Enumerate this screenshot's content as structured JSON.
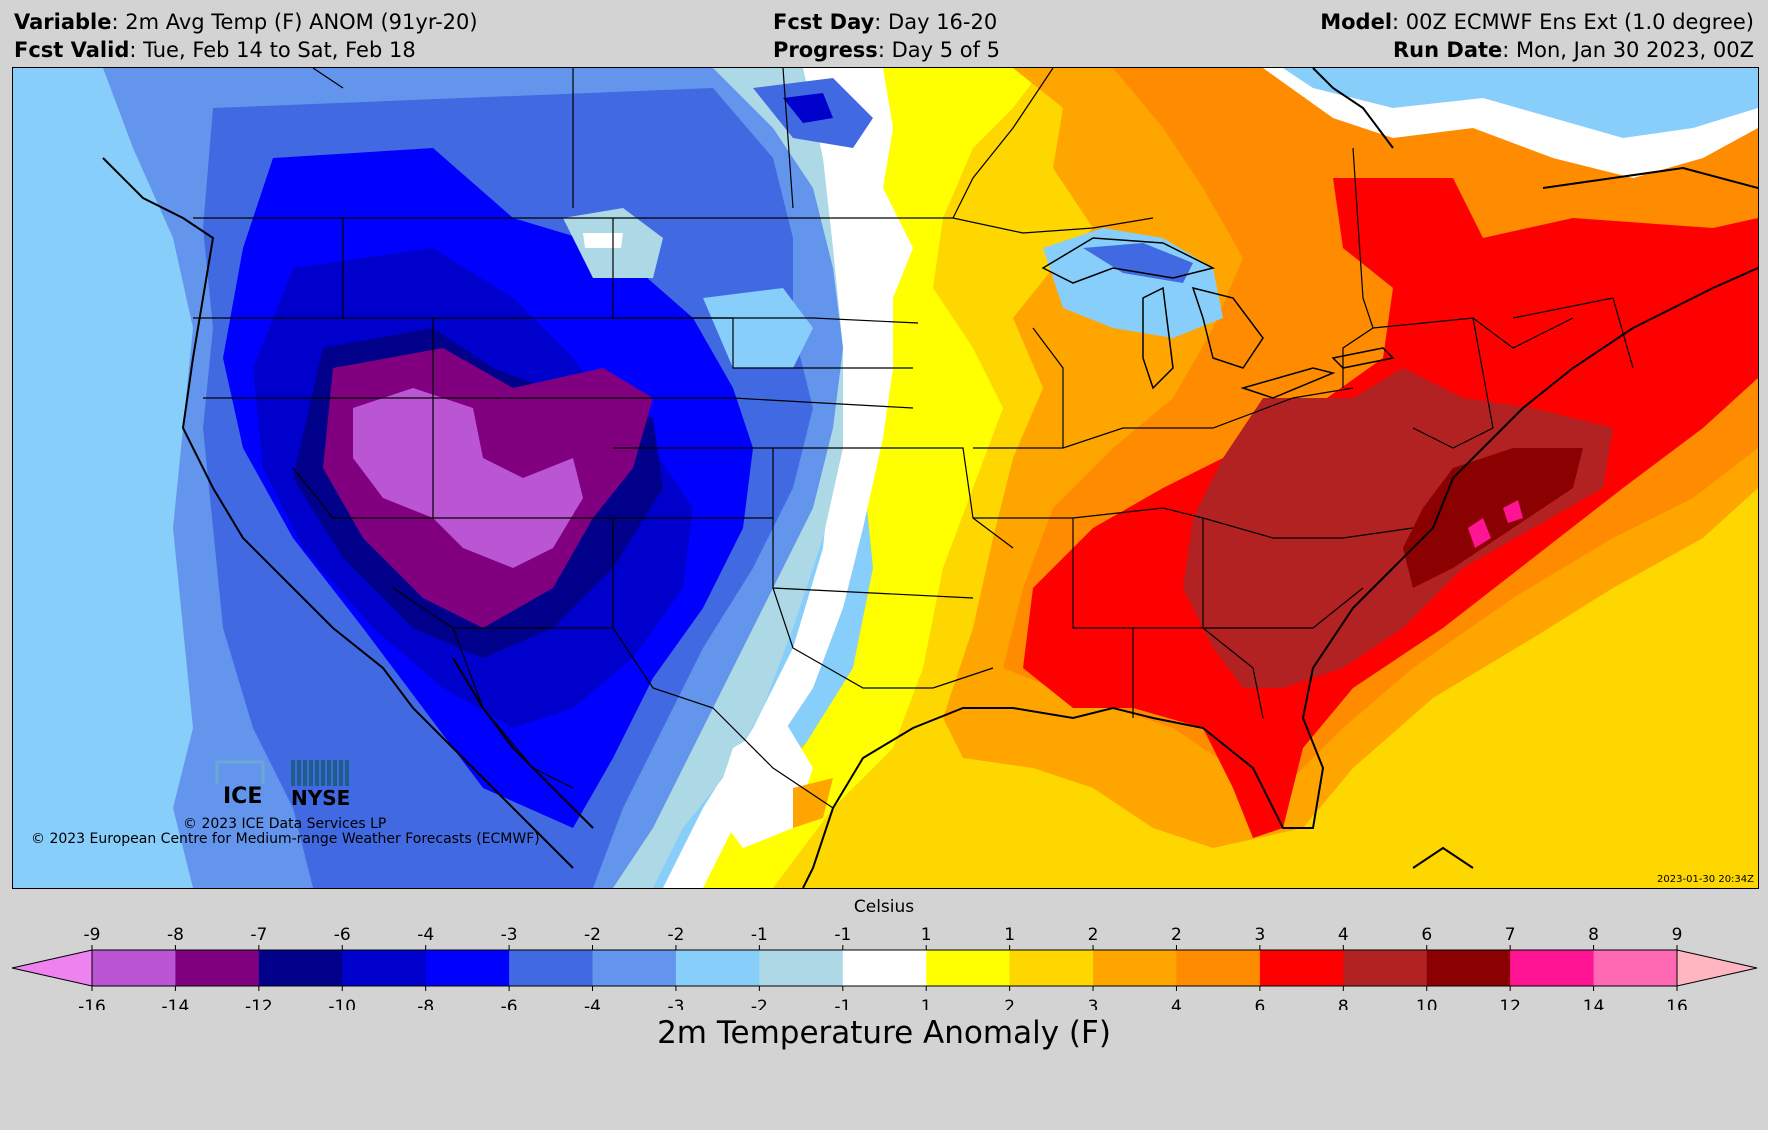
{
  "header": {
    "variable_label": "Variable",
    "variable_value": ": 2m Avg Temp (F) ANOM (91yr-20)",
    "valid_label": "Fcst Valid",
    "valid_value": ": Tue, Feb 14 to Sat, Feb 18",
    "fcst_day_label": "Fcst Day",
    "fcst_day_value": ": Day 16-20",
    "progress_label": "Progress",
    "progress_value": ": Day 5 of 5",
    "model_label": "Model",
    "model_value": ": 00Z ECMWF Ens Ext (1.0 degree)",
    "run_label": "Run Date",
    "run_value": ": Mon, Jan 30 2023, 00Z"
  },
  "map": {
    "logo_ice": "ICE",
    "logo_nyse": "NYSE",
    "credit_ice": "© 2023 ICE Data Services LP",
    "credit_ecmwf": "© 2023 European Centre for Medium-range Weather Forecasts (ECMWF)",
    "timestamp": "2023-01-30 20:34Z"
  },
  "colorbar": {
    "celsius_label": "Celsius",
    "title": "2m Temperature Anomaly (F)",
    "colors": [
      "#ee82ee",
      "#ba55d3",
      "#800080",
      "#00008b",
      "#0000cd",
      "#0000ff",
      "#4169e1",
      "#6495ed",
      "#87cefa",
      "#add8e6",
      "#ffffff",
      "#ffff00",
      "#ffd700",
      "#ffa500",
      "#ff8c00",
      "#ff0000",
      "#b22222",
      "#8b0000",
      "#ff1493",
      "#ff69b4",
      "#ffb6c1"
    ],
    "fahrenheit_ticks": [
      "-16",
      "-14",
      "-12",
      "-10",
      "-8",
      "-6",
      "-4",
      "-3",
      "-2",
      "-1",
      "1",
      "2",
      "3",
      "4",
      "6",
      "8",
      "10",
      "12",
      "14",
      "16"
    ],
    "celsius_ticks": [
      "-9",
      "-8",
      "-7",
      "-6",
      "-4",
      "-3",
      "-2",
      "-2",
      "-1",
      "-1",
      "1",
      "1",
      "2",
      "2",
      "3",
      "4",
      "6",
      "7",
      "8",
      "9"
    ]
  }
}
